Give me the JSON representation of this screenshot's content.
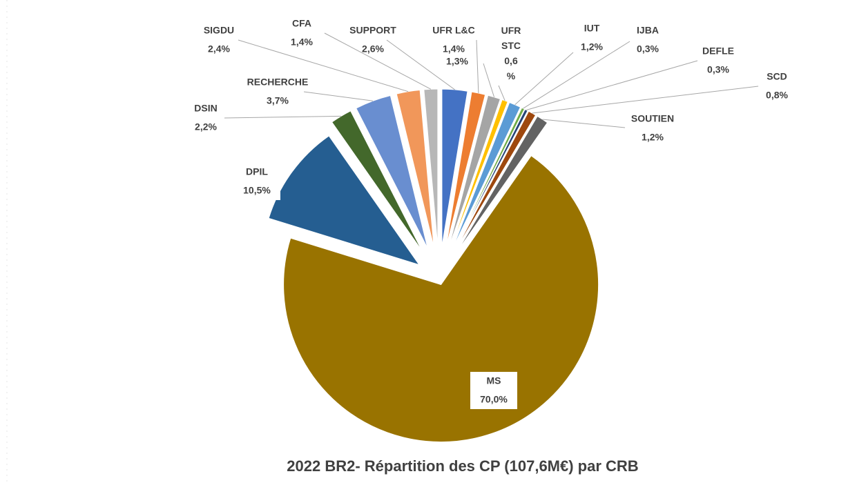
{
  "chart_data": {
    "type": "pie",
    "title": "2022 BR2- Répartition des CP (107,6M€) par CRB",
    "categories": [
      "SUPPORT",
      "UFR L&C",
      null,
      "UFR STC",
      "IUT",
      "IJBA",
      "DEFLE",
      "SCD",
      "SOUTIEN",
      "MS",
      "DPIL",
      "DSIN",
      "RECHERCHE",
      "SIGDU",
      "CFA"
    ],
    "values": [
      2.6,
      1.4,
      1.3,
      0.6,
      1.2,
      0.3,
      0.3,
      0.8,
      1.2,
      70.0,
      10.5,
      2.2,
      3.7,
      2.4,
      1.4
    ],
    "value_labels": [
      "2,6%",
      "1,4%",
      "1,3%",
      "0,6 %",
      "1,2%",
      "0,3%",
      "0,3%",
      "0,8%",
      "1,2%",
      "70,0%",
      "10,5%",
      "2,2%",
      "3,7%",
      "2,4%",
      "1,4%"
    ],
    "colors": [
      "#4472c4",
      "#ed7d31",
      "#a5a5a5",
      "#ffc000",
      "#5b9bd5",
      "#70ad47",
      "#264478",
      "#9e480e",
      "#636363",
      "#997300",
      "#255e91",
      "#43682b",
      "#698ed0",
      "#f1975a",
      "#b7b7b7"
    ]
  }
}
